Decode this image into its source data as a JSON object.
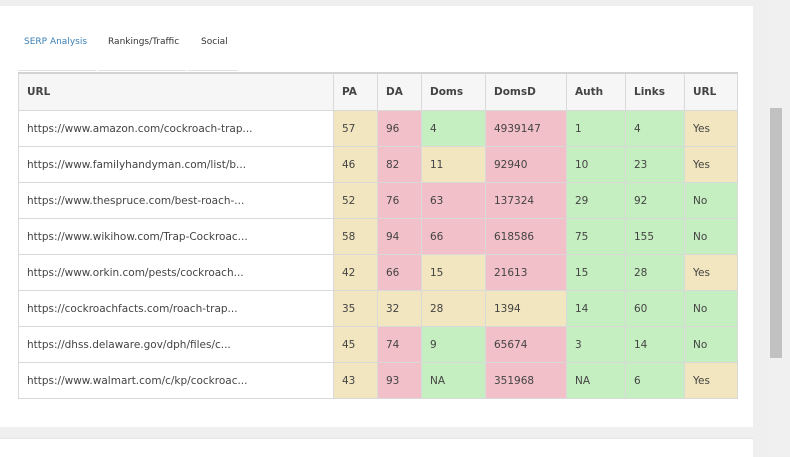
{
  "tabs": [
    {
      "label": "SERP Analysis",
      "active": true
    },
    {
      "label": "Rankings/Traffic",
      "active": false
    },
    {
      "label": "Social",
      "active": false
    }
  ],
  "table": {
    "columns": [
      "URL",
      "PA",
      "DA",
      "Doms",
      "DomsD",
      "Auth",
      "Links",
      "URL"
    ],
    "rows": [
      {
        "url": "https://www.amazon.com/cockroach-trap...",
        "pa": "57",
        "da": "96",
        "doms": "4",
        "domsd": "4939147",
        "auth": "1",
        "links": "4",
        "url_flag": "Yes",
        "status": {
          "pa": "mid",
          "da": "bad",
          "doms": "good",
          "domsd": "bad",
          "auth": "good",
          "links": "good",
          "url_flag": "mid"
        }
      },
      {
        "url": "https://www.familyhandyman.com/list/b...",
        "pa": "46",
        "da": "82",
        "doms": "11",
        "domsd": "92940",
        "auth": "10",
        "links": "23",
        "url_flag": "Yes",
        "status": {
          "pa": "mid",
          "da": "bad",
          "doms": "mid",
          "domsd": "bad",
          "auth": "good",
          "links": "good",
          "url_flag": "mid"
        }
      },
      {
        "url": "https://www.thespruce.com/best-roach-...",
        "pa": "52",
        "da": "76",
        "doms": "63",
        "domsd": "137324",
        "auth": "29",
        "links": "92",
        "url_flag": "No",
        "status": {
          "pa": "mid",
          "da": "bad",
          "doms": "bad",
          "domsd": "bad",
          "auth": "good",
          "links": "good",
          "url_flag": "good"
        }
      },
      {
        "url": "https://www.wikihow.com/Trap-Cockroac...",
        "pa": "58",
        "da": "94",
        "doms": "66",
        "domsd": "618586",
        "auth": "75",
        "links": "155",
        "url_flag": "No",
        "status": {
          "pa": "mid",
          "da": "bad",
          "doms": "bad",
          "domsd": "bad",
          "auth": "good",
          "links": "good",
          "url_flag": "good"
        }
      },
      {
        "url": "https://www.orkin.com/pests/cockroach...",
        "pa": "42",
        "da": "66",
        "doms": "15",
        "domsd": "21613",
        "auth": "15",
        "links": "28",
        "url_flag": "Yes",
        "status": {
          "pa": "mid",
          "da": "bad",
          "doms": "mid",
          "domsd": "bad",
          "auth": "good",
          "links": "good",
          "url_flag": "mid"
        }
      },
      {
        "url": "https://cockroachfacts.com/roach-trap...",
        "pa": "35",
        "da": "32",
        "doms": "28",
        "domsd": "1394",
        "auth": "14",
        "links": "60",
        "url_flag": "No",
        "status": {
          "pa": "mid",
          "da": "mid",
          "doms": "mid",
          "domsd": "mid",
          "auth": "good",
          "links": "good",
          "url_flag": "good"
        }
      },
      {
        "url": "https://dhss.delaware.gov/dph/files/c...",
        "pa": "45",
        "da": "74",
        "doms": "9",
        "domsd": "65674",
        "auth": "3",
        "links": "14",
        "url_flag": "No",
        "status": {
          "pa": "mid",
          "da": "bad",
          "doms": "good",
          "domsd": "bad",
          "auth": "good",
          "links": "good",
          "url_flag": "good"
        }
      },
      {
        "url": "https://www.walmart.com/c/kp/cockroac...",
        "pa": "43",
        "da": "93",
        "doms": "NA",
        "domsd": "351968",
        "auth": "NA",
        "links": "6",
        "url_flag": "Yes",
        "status": {
          "pa": "mid",
          "da": "bad",
          "doms": "good",
          "domsd": "bad",
          "auth": "good",
          "links": "good",
          "url_flag": "mid"
        }
      }
    ]
  },
  "colors": {
    "good": "#c6efc1",
    "mid": "#f1e6bf",
    "bad": "#f2c0c8",
    "link": "#2c6aa0",
    "active_tab": "#3a7fb5"
  }
}
